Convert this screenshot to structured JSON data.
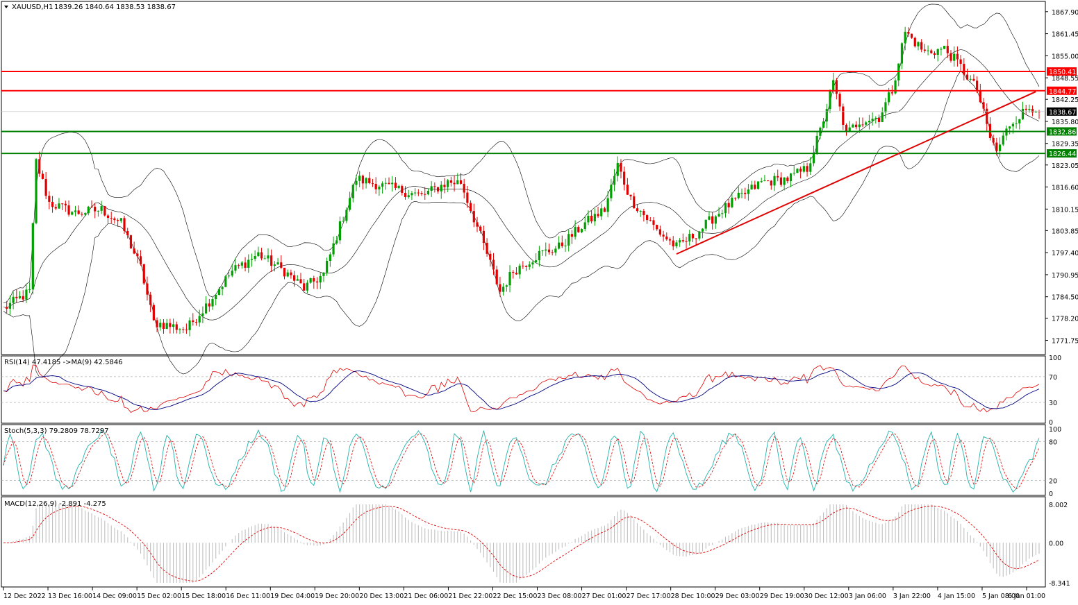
{
  "header": {
    "symbol": "XAUUSD,H1",
    "ohlc": "1839.26 1840.64 1838.53 1838.67"
  },
  "colors": {
    "bull": "#00a000",
    "bear": "#e00000",
    "resistance": "#ff0000",
    "support": "#008000",
    "trendline": "#e00000",
    "bands": "#000000",
    "rsi_line": "#e00000",
    "rsi_ma": "#000080",
    "stoch_main": "#20b2aa",
    "stoch_signal": "#e00000",
    "macd_hist": "#c0c0c0",
    "macd_signal": "#e00000",
    "price_tag": "#000000"
  },
  "chart_data": [
    {
      "type": "candlestick",
      "title": "XAUUSD,H1",
      "ylim": [
        1768.0,
        1870.5
      ],
      "y_ticks": [
        "1867.90",
        "1861.45",
        "1855.00",
        "1848.55",
        "1842.25",
        "1835.80",
        "1829.35",
        "1823.05",
        "1816.60",
        "1810.15",
        "1803.85",
        "1797.40",
        "1790.95",
        "1784.50",
        "1778.20",
        "1771.75"
      ],
      "x_tick_labels": [
        "12 Dec 2022",
        "13 Dec 16:00",
        "14 Dec 09:00",
        "15 Dec 02:00",
        "15 Dec 18:00",
        "16 Dec 11:00",
        "19 Dec 04:00",
        "19 Dec 20:00",
        "20 Dec 13:00",
        "21 Dec 06:00",
        "21 Dec 22:00",
        "22 Dec 15:00",
        "23 Dec 08:00",
        "27 Dec 01:00",
        "27 Dec 17:00",
        "28 Dec 10:00",
        "29 Dec 03:00",
        "29 Dec 19:00",
        "30 Dec 12:00",
        "3 Jan 06:00",
        "3 Jan 22:00",
        "4 Jan 15:00",
        "5 Jan 08:00",
        "6 Jan 01:00"
      ],
      "price_path": [
        {
          "bar": 0,
          "price": 1781
        },
        {
          "bar": 8,
          "price": 1786
        },
        {
          "bar": 10,
          "price": 1824
        },
        {
          "bar": 14,
          "price": 1812
        },
        {
          "bar": 22,
          "price": 1809
        },
        {
          "bar": 30,
          "price": 1810
        },
        {
          "bar": 36,
          "price": 1806
        },
        {
          "bar": 42,
          "price": 1793
        },
        {
          "bar": 46,
          "price": 1777
        },
        {
          "bar": 56,
          "price": 1775
        },
        {
          "bar": 62,
          "price": 1782
        },
        {
          "bar": 70,
          "price": 1792
        },
        {
          "bar": 78,
          "price": 1797
        },
        {
          "bar": 86,
          "price": 1792
        },
        {
          "bar": 92,
          "price": 1787
        },
        {
          "bar": 98,
          "price": 1791
        },
        {
          "bar": 104,
          "price": 1808
        },
        {
          "bar": 108,
          "price": 1819
        },
        {
          "bar": 120,
          "price": 1816
        },
        {
          "bar": 128,
          "price": 1814
        },
        {
          "bar": 136,
          "price": 1818
        },
        {
          "bar": 140,
          "price": 1818
        },
        {
          "bar": 148,
          "price": 1797
        },
        {
          "bar": 152,
          "price": 1786
        },
        {
          "bar": 156,
          "price": 1792
        },
        {
          "bar": 164,
          "price": 1797
        },
        {
          "bar": 170,
          "price": 1799
        },
        {
          "bar": 178,
          "price": 1806
        },
        {
          "bar": 184,
          "price": 1810
        },
        {
          "bar": 188,
          "price": 1823
        },
        {
          "bar": 192,
          "price": 1813
        },
        {
          "bar": 200,
          "price": 1804
        },
        {
          "bar": 206,
          "price": 1799
        },
        {
          "bar": 212,
          "price": 1803
        },
        {
          "bar": 220,
          "price": 1810
        },
        {
          "bar": 226,
          "price": 1814
        },
        {
          "bar": 232,
          "price": 1818
        },
        {
          "bar": 240,
          "price": 1819
        },
        {
          "bar": 246,
          "price": 1822
        },
        {
          "bar": 250,
          "price": 1833
        },
        {
          "bar": 254,
          "price": 1847
        },
        {
          "bar": 258,
          "price": 1832
        },
        {
          "bar": 262,
          "price": 1836
        },
        {
          "bar": 268,
          "price": 1837
        },
        {
          "bar": 272,
          "price": 1845
        },
        {
          "bar": 276,
          "price": 1862
        },
        {
          "bar": 282,
          "price": 1856
        },
        {
          "bar": 288,
          "price": 1857
        },
        {
          "bar": 292,
          "price": 1853
        },
        {
          "bar": 298,
          "price": 1845
        },
        {
          "bar": 302,
          "price": 1831
        },
        {
          "bar": 304,
          "price": 1827
        },
        {
          "bar": 308,
          "price": 1835
        },
        {
          "bar": 314,
          "price": 1840
        }
      ],
      "bollinger_bands_period": 20,
      "horizontal_levels": [
        {
          "name": "resistance-1",
          "value": 1850.41,
          "label": "1850.41",
          "kind": "resistance"
        },
        {
          "name": "resistance-2",
          "value": 1844.77,
          "label": "1844.77",
          "kind": "resistance"
        },
        {
          "name": "current-price",
          "value": 1838.67,
          "label": "1838.67",
          "kind": "current"
        },
        {
          "name": "support-1",
          "value": 1832.86,
          "label": "1832.86",
          "kind": "support"
        },
        {
          "name": "support-2",
          "value": 1826.44,
          "label": "1826.44",
          "kind": "support"
        }
      ],
      "trendline": {
        "start_bar": 206,
        "start_price": 1797.0,
        "end_bar": 316,
        "end_price": 1844.5
      },
      "total_bars": 318,
      "grid": false
    },
    {
      "type": "line",
      "title": "RSI(14) 47.4185  ->MA(9) 42.5846",
      "ylim": [
        0,
        100
      ],
      "y_ticks": [
        "100",
        "70",
        "30",
        "0"
      ],
      "levels": [
        70,
        30
      ]
    },
    {
      "type": "line",
      "title": "Stoch(5,3,3) 79.2809 78.7297",
      "ylim": [
        0,
        100
      ],
      "y_ticks": [
        "100",
        "80",
        "20",
        "0"
      ],
      "levels": [
        80,
        20
      ]
    },
    {
      "type": "bar",
      "title": "MACD(12,26,9) -2.891 -4.275",
      "ylim": [
        -8.341,
        8.002
      ],
      "y_ticks": [
        "8.002",
        "0.00",
        "-8.341"
      ]
    }
  ]
}
